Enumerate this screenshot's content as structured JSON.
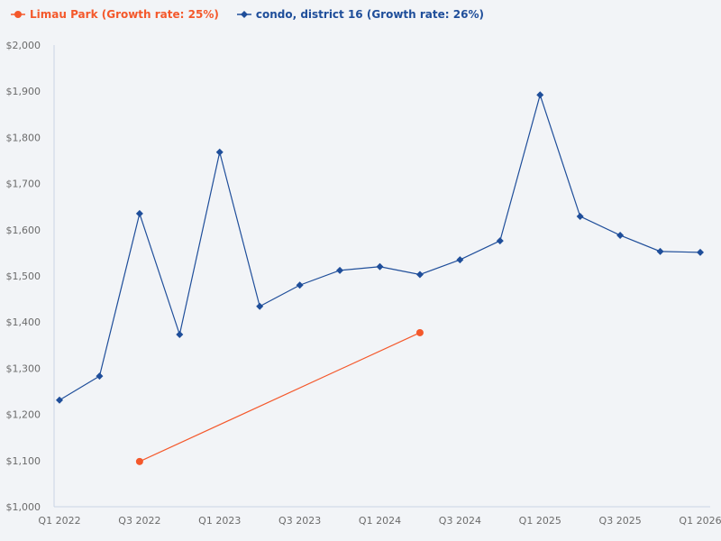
{
  "chart_data": {
    "type": "line",
    "title": "",
    "xlabel": "",
    "ylabel": "",
    "ylim": [
      1000,
      2000
    ],
    "yticks": [
      "$1,000",
      "$1,100",
      "$1,200",
      "$1,300",
      "$1,400",
      "$1,500",
      "$1,600",
      "$1,700",
      "$1,800",
      "$1,900",
      "$2,000"
    ],
    "ytick_values": [
      1000,
      1100,
      1200,
      1300,
      1400,
      1500,
      1600,
      1700,
      1800,
      1900,
      2000
    ],
    "x": [
      "Q1 2022",
      "Q2 2022",
      "Q3 2022",
      "Q4 2022",
      "Q1 2023",
      "Q2 2023",
      "Q3 2023",
      "Q4 2023",
      "Q1 2024",
      "Q2 2024",
      "Q3 2024",
      "Q4 2024",
      "Q1 2025",
      "Q2 2025",
      "Q3 2025",
      "Q4 2025",
      "Q1 2026"
    ],
    "xtick_labels": [
      "Q1 2022",
      "Q3 2022",
      "Q1 2023",
      "Q3 2023",
      "Q1 2024",
      "Q3 2024",
      "Q1 2025",
      "Q3 2025",
      "Q1 2026"
    ],
    "grid": false,
    "legend_position": "top-left",
    "series": [
      {
        "name": "Limau Park (Growth rate: 25%)",
        "color": "#f4582b",
        "marker": "circle",
        "values": [
          null,
          null,
          1098,
          null,
          null,
          null,
          null,
          null,
          null,
          1377,
          null,
          null,
          null,
          null,
          null,
          null,
          null
        ]
      },
      {
        "name": "condo, district 16 (Growth rate: 26%)",
        "color": "#1f4e9a",
        "marker": "diamond",
        "values": [
          1231,
          1283,
          1635,
          1373,
          1768,
          1434,
          1480,
          1512,
          1520,
          1503,
          1535,
          1576,
          1892,
          1629,
          1588,
          1553,
          1551
        ]
      }
    ]
  },
  "legend": {
    "items": [
      {
        "label": "Limau Park (Growth rate: 25%)",
        "color": "#f4582b"
      },
      {
        "label": "condo, district 16 (Growth rate: 26%)",
        "color": "#1f4e9a"
      }
    ]
  },
  "colors": {
    "background": "#f2f4f7",
    "axis": "#c9d3e6",
    "tick_text": "#6b6b6b"
  }
}
